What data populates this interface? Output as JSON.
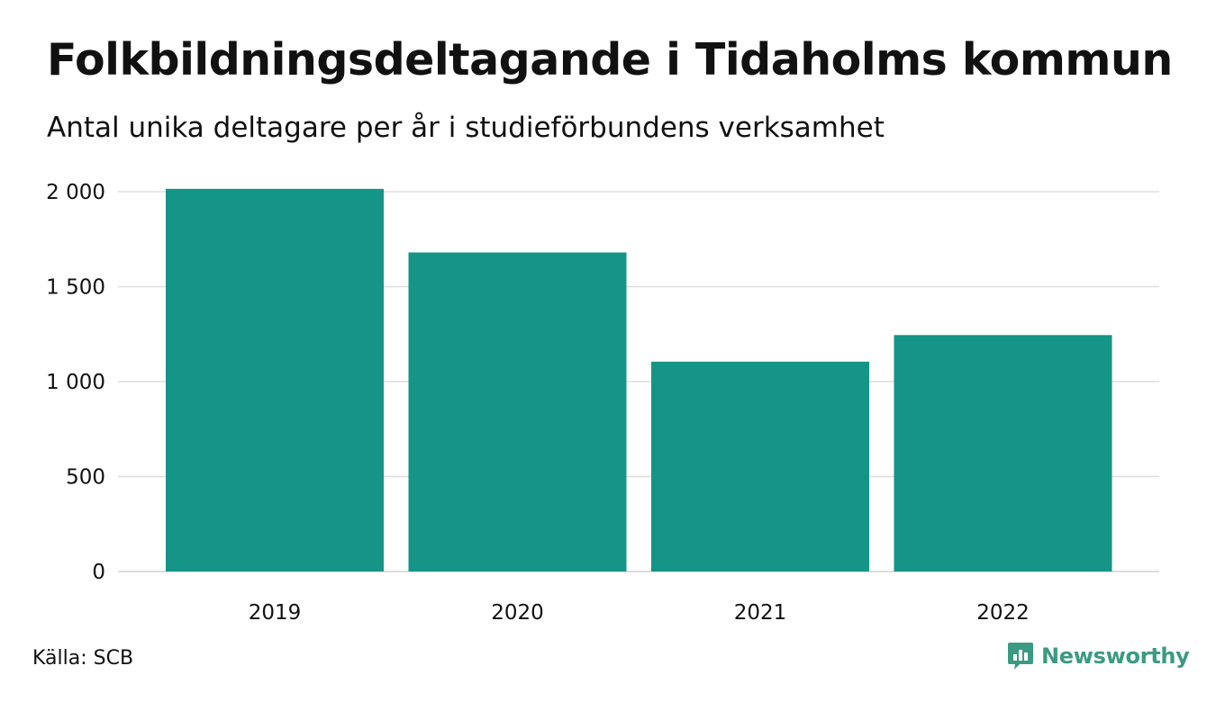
{
  "header": {
    "title": "Folkbildningsdeltagande i Tidaholms kommun",
    "subtitle": "Antal unika deltagare per år i studieförbundens verksamhet"
  },
  "footer": {
    "source": "Källa: SCB",
    "brand": "Newsworthy",
    "brand_icon": "chart-speech-bubble-icon"
  },
  "colors": {
    "bar": "#149587",
    "grid": "#dddddd",
    "brand": "#3c9a82"
  },
  "chart_data": {
    "type": "bar",
    "title": "Folkbildningsdeltagande i Tidaholms kommun",
    "subtitle": "Antal unika deltagare per år i studieförbundens verksamhet",
    "categories": [
      "2019",
      "2020",
      "2021",
      "2022"
    ],
    "values": [
      2015,
      1680,
      1105,
      1245
    ],
    "ylim": [
      0,
      2000
    ],
    "yticks": [
      0,
      500,
      1000,
      1500,
      2000
    ],
    "ytick_labels": [
      "0",
      "500",
      "1 000",
      "1 500",
      "2 000"
    ],
    "xlabel": "",
    "ylabel": "",
    "grid": true,
    "legend": "none"
  }
}
